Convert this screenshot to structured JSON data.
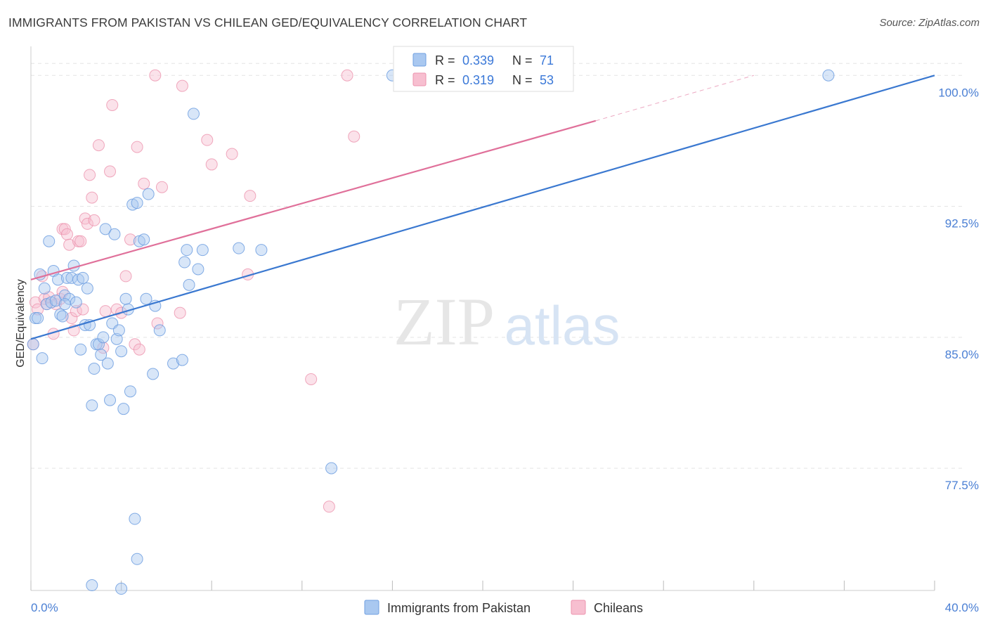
{
  "title": "IMMIGRANTS FROM PAKISTAN VS CHILEAN GED/EQUIVALENCY CORRELATION CHART",
  "source": "Source: ZipAtlas.com",
  "watermark": {
    "zip": "ZIP",
    "atlas": "atlas"
  },
  "colors": {
    "blue_fill": "#a9c8f0",
    "blue_stroke": "#6f9fe0",
    "blue_line": "#3a78d0",
    "pink_fill": "#f7bfd0",
    "pink_stroke": "#ec93ae",
    "pink_line": "#e0709a",
    "tick_label": "#4a7fd4",
    "grid": "#e4e4e4"
  },
  "chart_data": {
    "type": "scatter",
    "xlabel": "",
    "ylabel": "GED/Equivalency",
    "xlim": [
      0,
      40
    ],
    "ylim": [
      70.5,
      101.5
    ],
    "x_ticks": [
      0,
      4,
      8,
      12,
      16,
      20,
      24,
      28,
      32,
      36,
      40
    ],
    "x_tick_labels": {
      "first": "0.0%",
      "last": "40.0%"
    },
    "y_ticks": [
      77.5,
      85.0,
      92.5,
      100.0
    ],
    "y_tick_labels": [
      "77.5%",
      "85.0%",
      "92.5%",
      "100.0%"
    ],
    "grid": true,
    "legend": {
      "position": "top-center",
      "entries": [
        {
          "r_label": "R =",
          "r_value": "0.339",
          "n_label": "N =",
          "n_value": "71"
        },
        {
          "r_label": "R =",
          "r_value": "0.319",
          "n_label": "N =",
          "n_value": "53"
        }
      ]
    },
    "bottom_legend": [
      "Immigrants from Pakistan",
      "Chileans"
    ],
    "series": [
      {
        "name": "Immigrants from Pakistan",
        "color": "#a9c8f0",
        "trend": {
          "x": [
            0,
            40
          ],
          "y": [
            84.9,
            100.0
          ]
        },
        "points": [
          [
            0.2,
            86.1
          ],
          [
            0.3,
            86.1
          ],
          [
            0.4,
            88.6
          ],
          [
            0.5,
            83.8
          ],
          [
            0.6,
            87.8
          ],
          [
            0.7,
            86.9
          ],
          [
            0.8,
            90.5
          ],
          [
            0.9,
            87.0
          ],
          [
            1.0,
            88.8
          ],
          [
            1.1,
            87.1
          ],
          [
            1.2,
            88.3
          ],
          [
            1.3,
            86.3
          ],
          [
            1.4,
            86.2
          ],
          [
            1.5,
            87.4
          ],
          [
            1.6,
            88.4
          ],
          [
            1.7,
            87.2
          ],
          [
            1.8,
            88.4
          ],
          [
            1.9,
            89.1
          ],
          [
            2.0,
            87.0
          ],
          [
            2.1,
            88.3
          ],
          [
            2.2,
            84.3
          ],
          [
            2.3,
            88.4
          ],
          [
            2.4,
            85.7
          ],
          [
            2.5,
            87.8
          ],
          [
            2.6,
            85.7
          ],
          [
            2.7,
            81.1
          ],
          [
            2.8,
            83.2
          ],
          [
            2.9,
            84.6
          ],
          [
            3.0,
            84.6
          ],
          [
            3.1,
            84.0
          ],
          [
            3.2,
            85.0
          ],
          [
            3.3,
            91.2
          ],
          [
            3.4,
            83.5
          ],
          [
            3.5,
            81.4
          ],
          [
            3.6,
            85.8
          ],
          [
            3.7,
            90.9
          ],
          [
            3.8,
            84.9
          ],
          [
            3.9,
            85.4
          ],
          [
            4.0,
            84.2
          ],
          [
            4.1,
            80.9
          ],
          [
            4.2,
            87.2
          ],
          [
            4.3,
            86.6
          ],
          [
            4.4,
            81.9
          ],
          [
            4.5,
            92.6
          ],
          [
            4.0,
            70.6
          ],
          [
            2.7,
            70.8
          ],
          [
            4.7,
            92.7
          ],
          [
            4.8,
            90.5
          ],
          [
            4.6,
            74.6
          ],
          [
            4.7,
            72.3
          ],
          [
            5.0,
            90.6
          ],
          [
            5.1,
            87.2
          ],
          [
            5.2,
            93.2
          ],
          [
            5.4,
            82.9
          ],
          [
            5.5,
            86.8
          ],
          [
            5.7,
            85.4
          ],
          [
            6.3,
            83.5
          ],
          [
            6.7,
            83.7
          ],
          [
            6.8,
            89.3
          ],
          [
            6.9,
            90.0
          ],
          [
            7.0,
            88.0
          ],
          [
            7.2,
            97.8
          ],
          [
            7.4,
            88.9
          ],
          [
            7.6,
            90.0
          ],
          [
            9.2,
            90.1
          ],
          [
            10.2,
            90.0
          ],
          [
            13.3,
            77.5
          ],
          [
            16.0,
            100.0
          ],
          [
            35.3,
            100.0
          ],
          [
            0.1,
            84.6
          ],
          [
            1.5,
            86.9
          ]
        ]
      },
      {
        "name": "Chileans",
        "color": "#f7bfd0",
        "trend": {
          "x": [
            0,
            25
          ],
          "y": [
            88.3,
            97.4
          ]
        },
        "trend_dashed": {
          "x": [
            25,
            32
          ],
          "y": [
            97.4,
            100.0
          ]
        },
        "points": [
          [
            0.1,
            84.6
          ],
          [
            0.2,
            87.0
          ],
          [
            0.3,
            86.6
          ],
          [
            0.5,
            88.5
          ],
          [
            0.6,
            87.2
          ],
          [
            0.7,
            86.9
          ],
          [
            0.8,
            87.3
          ],
          [
            1.0,
            85.2
          ],
          [
            1.1,
            86.9
          ],
          [
            1.3,
            87.2
          ],
          [
            1.4,
            87.6
          ],
          [
            1.4,
            91.2
          ],
          [
            1.5,
            91.2
          ],
          [
            1.6,
            90.9
          ],
          [
            1.7,
            90.3
          ],
          [
            1.8,
            86.1
          ],
          [
            1.9,
            85.4
          ],
          [
            2.0,
            86.5
          ],
          [
            2.1,
            90.5
          ],
          [
            2.2,
            90.5
          ],
          [
            2.3,
            86.6
          ],
          [
            2.4,
            91.8
          ],
          [
            2.5,
            91.5
          ],
          [
            2.6,
            94.3
          ],
          [
            2.7,
            93.0
          ],
          [
            2.8,
            91.7
          ],
          [
            3.0,
            96.0
          ],
          [
            3.2,
            84.4
          ],
          [
            3.3,
            86.5
          ],
          [
            3.5,
            94.5
          ],
          [
            3.6,
            98.3
          ],
          [
            3.8,
            86.6
          ],
          [
            4.0,
            86.4
          ],
          [
            4.2,
            88.5
          ],
          [
            4.4,
            90.6
          ],
          [
            4.6,
            84.6
          ],
          [
            4.8,
            84.3
          ],
          [
            4.7,
            95.9
          ],
          [
            5.0,
            93.8
          ],
          [
            5.5,
            100.0
          ],
          [
            5.6,
            85.8
          ],
          [
            5.8,
            93.6
          ],
          [
            6.6,
            86.4
          ],
          [
            6.7,
            99.4
          ],
          [
            7.8,
            96.3
          ],
          [
            8.0,
            94.9
          ],
          [
            8.9,
            95.5
          ],
          [
            9.6,
            88.6
          ],
          [
            9.7,
            93.1
          ],
          [
            12.4,
            82.6
          ],
          [
            13.2,
            75.3
          ],
          [
            14.0,
            100.0
          ],
          [
            14.3,
            96.5
          ]
        ]
      }
    ]
  }
}
